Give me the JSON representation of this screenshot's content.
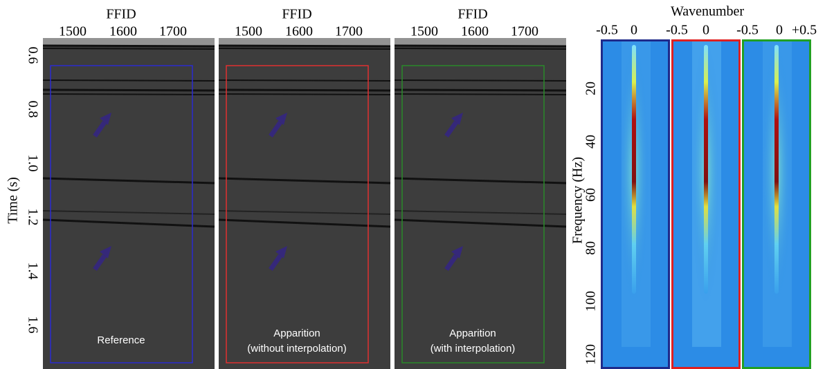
{
  "seismic_panels": [
    {
      "label_lines": [
        "Reference"
      ],
      "frame_color": "#2b2bd0"
    },
    {
      "label_lines": [
        "Apparition",
        "(without interpolation)"
      ],
      "frame_color": "#e03030"
    },
    {
      "label_lines": [
        "Apparition",
        "(with interpolation)"
      ],
      "frame_color": "#2a8a2a"
    }
  ],
  "ffid_axis": {
    "title": "FFID",
    "ticks": [
      "1500",
      "1600",
      "1700"
    ]
  },
  "time_axis": {
    "title": "Time (s)",
    "ticks": [
      "0.6",
      "0.8",
      "1.0",
      "1.2",
      "1.4",
      "1.6"
    ]
  },
  "spectrum_panels": [
    {
      "frame_color": "#1f2a8a"
    },
    {
      "frame_color": "#e02020"
    },
    {
      "frame_color": "#22a022"
    }
  ],
  "wavenumber_axis": {
    "title": "Wavenumber",
    "ticks": [
      "-0.5",
      "0",
      "-0.5",
      "0",
      "-0.5",
      "0",
      "+0.5"
    ]
  },
  "frequency_axis": {
    "title": "Frequency (Hz)",
    "ticks": [
      "20",
      "40",
      "60",
      "80",
      "100",
      "120"
    ]
  }
}
